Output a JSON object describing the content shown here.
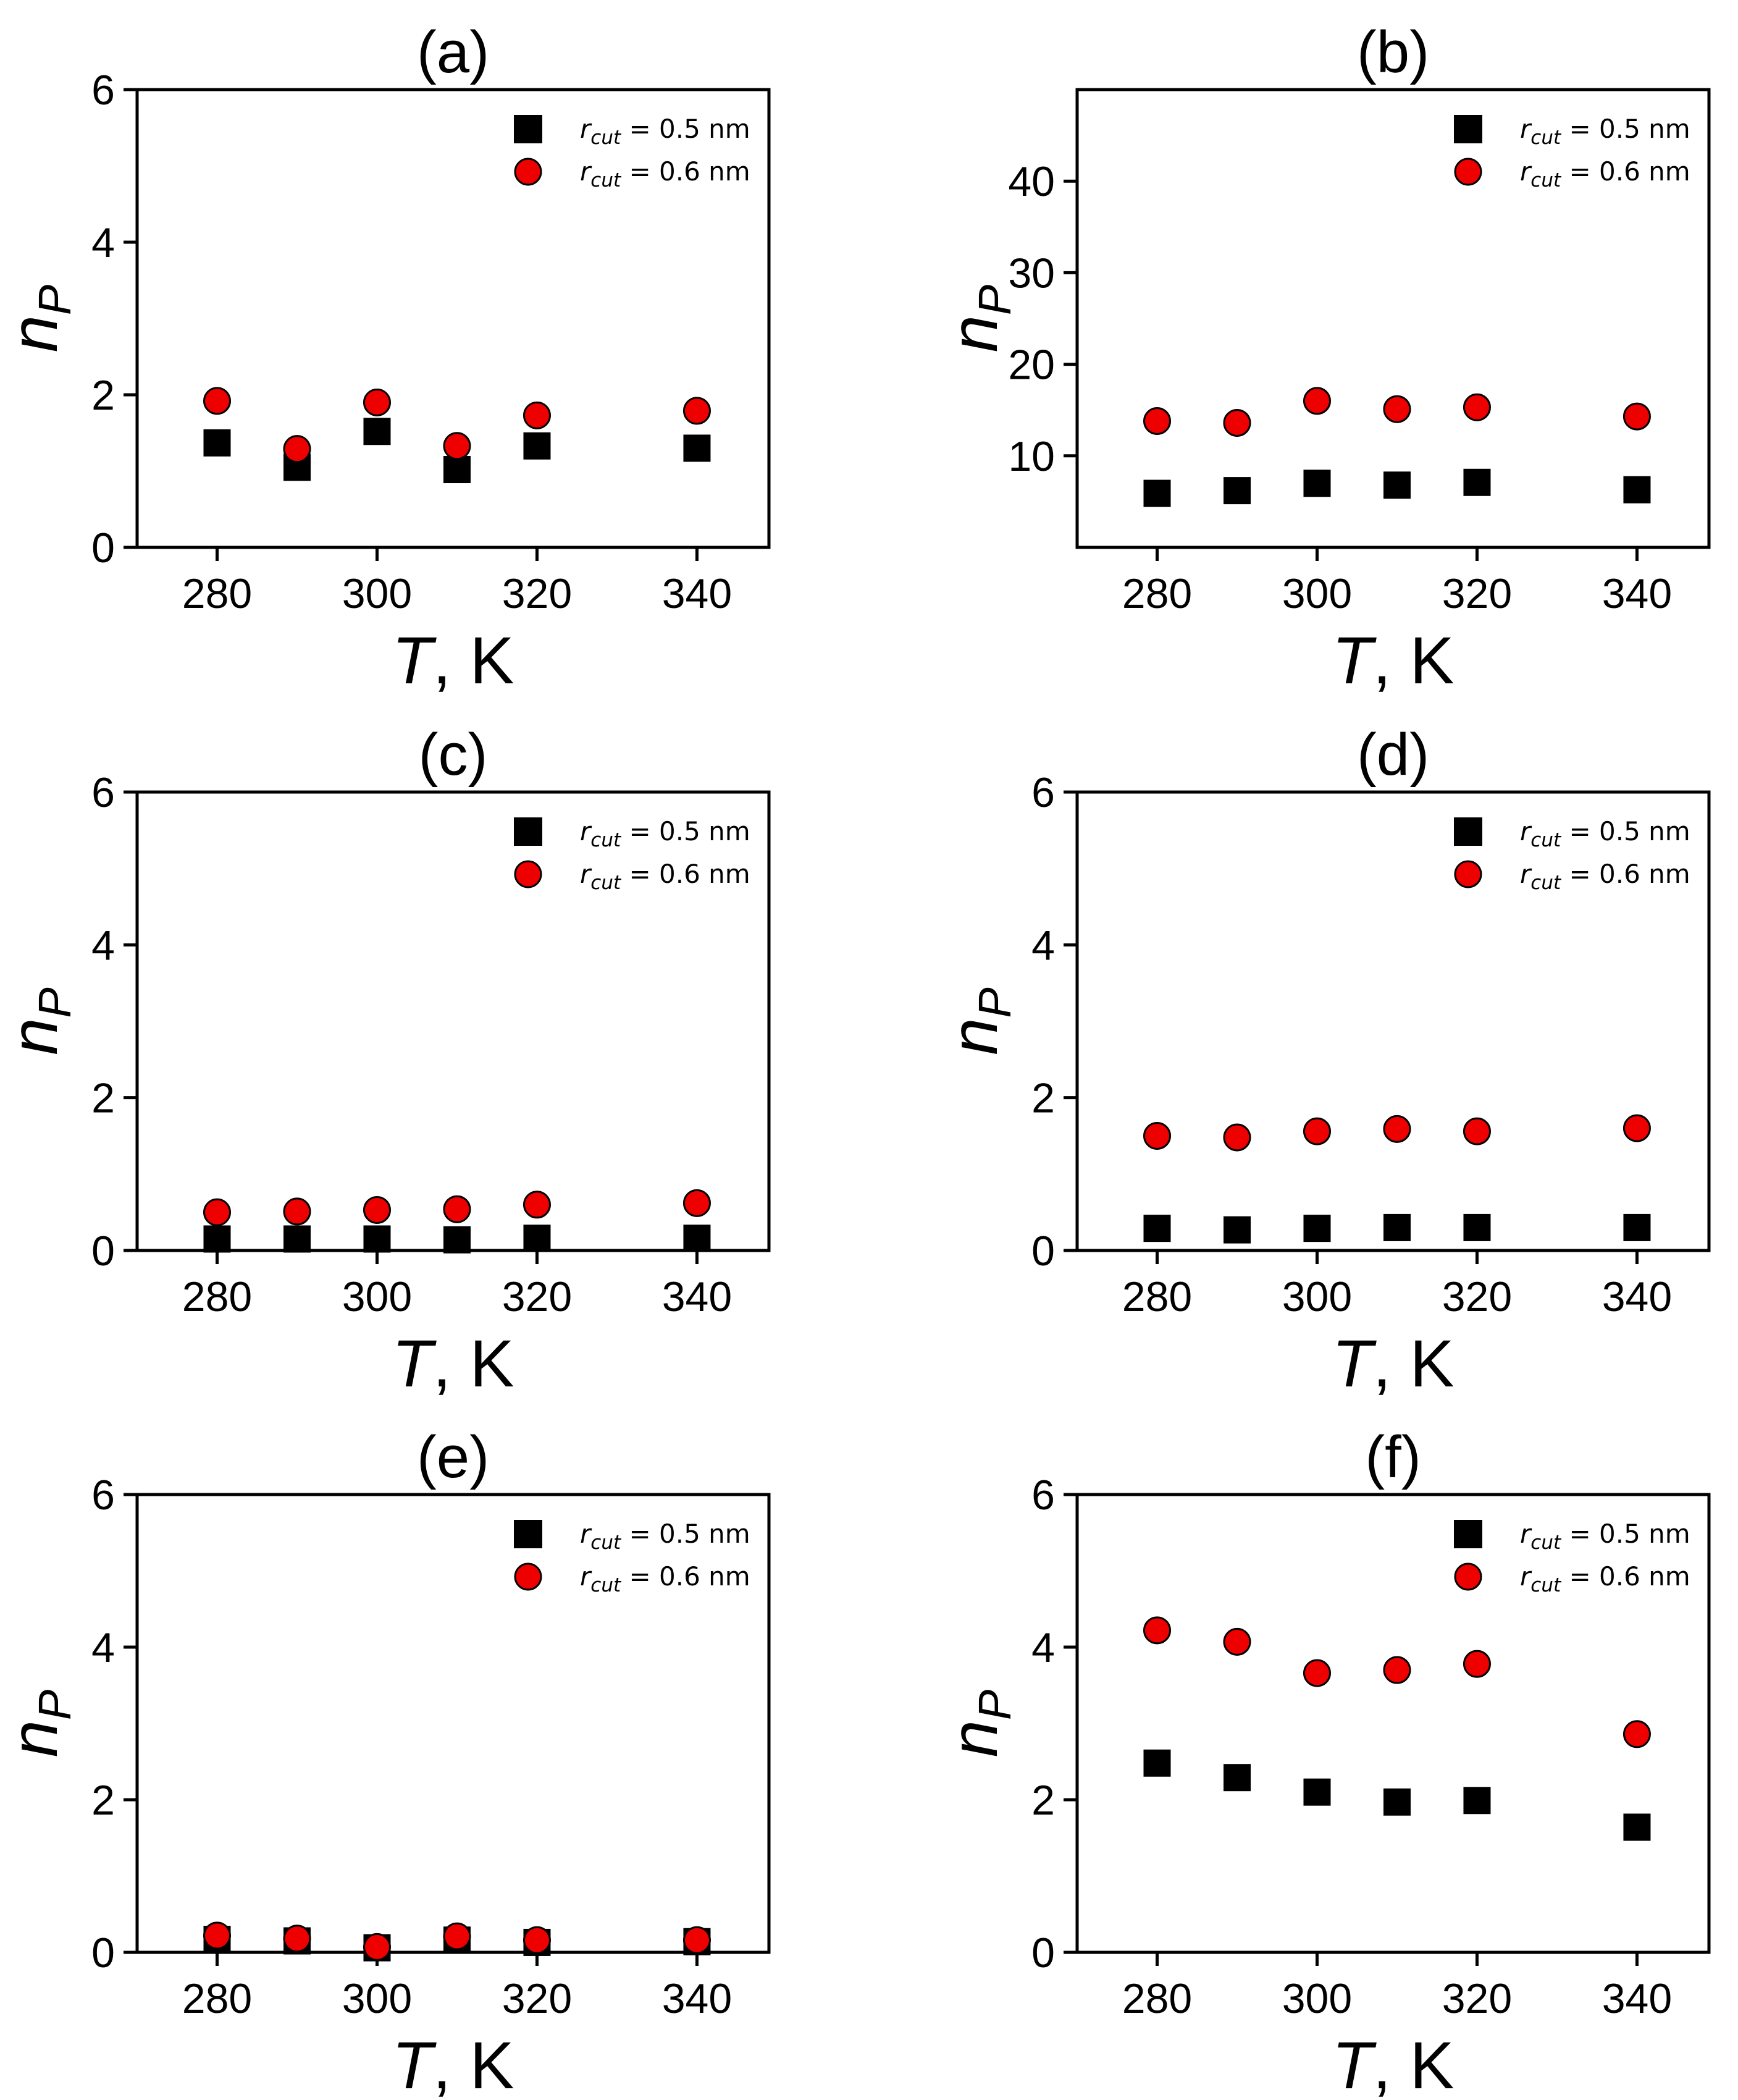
{
  "figure": {
    "legend": {
      "series_a_text": "= 0.5 nm",
      "series_b_text": "= 0.6 nm",
      "r_symbol": "r",
      "cut_subscript": "cut"
    },
    "xlabel_symbol": "T",
    "xlabel_unit": ", K",
    "ylabel_symbol": "n",
    "ylabel_subscript": "P"
  },
  "colors": {
    "square": "#000000",
    "circle": "#ee0000",
    "circle_edge": "#000000",
    "axes": "#000000"
  },
  "chart_data": [
    {
      "type": "scatter",
      "title": "(a)",
      "xlabel": "T, K",
      "ylabel": "n_P",
      "xlim": [
        270,
        349
      ],
      "ylim": [
        0,
        6
      ],
      "xticks": [
        280,
        300,
        320,
        340
      ],
      "yticks": [
        0,
        2,
        4,
        6
      ],
      "legend_loc": "top-right",
      "x": [
        280,
        290,
        300,
        310,
        320,
        340
      ],
      "series": [
        {
          "name": "r_cut = 0.5 nm",
          "marker": "square",
          "values": [
            1.37,
            1.05,
            1.52,
            1.02,
            1.33,
            1.3
          ]
        },
        {
          "name": "r_cut = 0.6 nm",
          "marker": "circle",
          "values": [
            1.92,
            1.29,
            1.9,
            1.33,
            1.73,
            1.79
          ]
        }
      ]
    },
    {
      "type": "scatter",
      "title": "(b)",
      "xlabel": "T, K",
      "ylabel": "n_P",
      "xlim": [
        270,
        349
      ],
      "ylim": [
        0,
        50
      ],
      "xticks": [
        280,
        300,
        320,
        340
      ],
      "yticks": [
        10,
        20,
        30,
        40
      ],
      "legend_loc": "top-right",
      "x": [
        280,
        290,
        300,
        310,
        320,
        340
      ],
      "series": [
        {
          "name": "r_cut = 0.5 nm",
          "marker": "square",
          "values": [
            5.9,
            6.2,
            7.0,
            6.8,
            7.1,
            6.3
          ]
        },
        {
          "name": "r_cut = 0.6 nm",
          "marker": "circle",
          "values": [
            13.8,
            13.6,
            16.0,
            15.1,
            15.3,
            14.3
          ]
        }
      ]
    },
    {
      "type": "scatter",
      "title": "(c)",
      "xlabel": "T, K",
      "ylabel": "n_P",
      "xlim": [
        270,
        349
      ],
      "ylim": [
        0,
        6
      ],
      "xticks": [
        280,
        300,
        320,
        340
      ],
      "yticks": [
        0,
        2,
        4,
        6
      ],
      "legend_loc": "top-right",
      "x": [
        280,
        290,
        300,
        310,
        320,
        340
      ],
      "series": [
        {
          "name": "r_cut = 0.5 nm",
          "marker": "square",
          "values": [
            0.15,
            0.15,
            0.15,
            0.14,
            0.16,
            0.16
          ]
        },
        {
          "name": "r_cut = 0.6 nm",
          "marker": "circle",
          "values": [
            0.5,
            0.51,
            0.53,
            0.54,
            0.6,
            0.62
          ]
        }
      ]
    },
    {
      "type": "scatter",
      "title": "(d)",
      "xlabel": "T, K",
      "ylabel": "n_P",
      "xlim": [
        270,
        349
      ],
      "ylim": [
        0,
        6
      ],
      "xticks": [
        280,
        300,
        320,
        340
      ],
      "yticks": [
        0,
        2,
        4,
        6
      ],
      "legend_loc": "top-right",
      "x": [
        280,
        290,
        300,
        310,
        320,
        340
      ],
      "series": [
        {
          "name": "r_cut = 0.5 nm",
          "marker": "square",
          "values": [
            0.29,
            0.27,
            0.29,
            0.3,
            0.3,
            0.3
          ]
        },
        {
          "name": "r_cut = 0.6 nm",
          "marker": "circle",
          "values": [
            1.5,
            1.48,
            1.56,
            1.59,
            1.56,
            1.6
          ]
        }
      ]
    },
    {
      "type": "scatter",
      "title": "(e)",
      "xlabel": "T, K",
      "ylabel": "n_P",
      "xlim": [
        270,
        349
      ],
      "ylim": [
        0,
        6
      ],
      "xticks": [
        280,
        300,
        320,
        340
      ],
      "yticks": [
        0,
        2,
        4,
        6
      ],
      "legend_loc": "top-right",
      "x": [
        280,
        290,
        300,
        310,
        320,
        340
      ],
      "series": [
        {
          "name": "r_cut = 0.5 nm",
          "marker": "square",
          "values": [
            0.17,
            0.15,
            0.06,
            0.16,
            0.13,
            0.14
          ]
        },
        {
          "name": "r_cut = 0.6 nm",
          "marker": "circle",
          "values": [
            0.22,
            0.18,
            0.07,
            0.21,
            0.16,
            0.16
          ]
        }
      ]
    },
    {
      "type": "scatter",
      "title": "(f)",
      "xlabel": "T, K",
      "ylabel": "n_P",
      "xlim": [
        270,
        349
      ],
      "ylim": [
        0,
        6
      ],
      "xticks": [
        280,
        300,
        320,
        340
      ],
      "yticks": [
        0,
        2,
        4,
        6
      ],
      "legend_loc": "top-right",
      "x": [
        280,
        290,
        300,
        310,
        320,
        340
      ],
      "series": [
        {
          "name": "r_cut = 0.5 nm",
          "marker": "square",
          "values": [
            2.48,
            2.29,
            2.1,
            1.97,
            1.99,
            1.64
          ]
        },
        {
          "name": "r_cut = 0.6 nm",
          "marker": "circle",
          "values": [
            4.22,
            4.07,
            3.66,
            3.7,
            3.78,
            2.86
          ]
        }
      ]
    }
  ]
}
